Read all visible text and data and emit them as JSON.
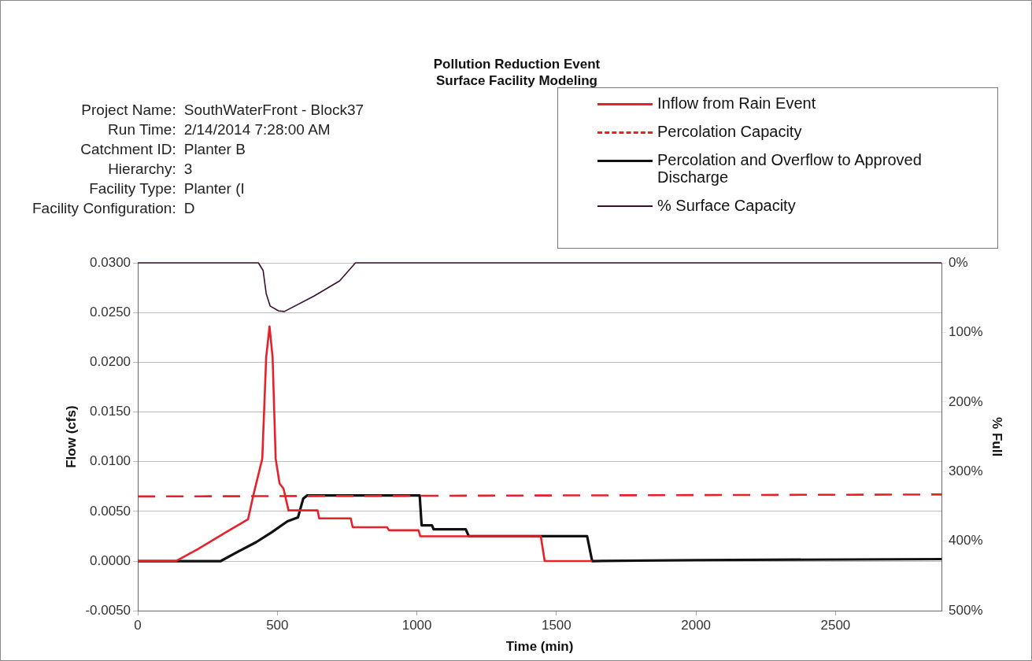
{
  "chart_data": {
    "type": "line",
    "title": "Pollution Reduction Event",
    "subtitle": "Surface Facility Modeling",
    "xlabel": "Time (min)",
    "ylabel": "Flow (cfs)",
    "y2label": "% Full",
    "annotations": [
      "Project Name:",
      "SouthWaterFront - Block37",
      "Run Time:",
      "2/14/2014 7:28:00 AM",
      "Catchment ID:",
      "Planter B",
      "Hierarchy:",
      "3",
      "Facility Type:",
      "Planter (I",
      "Facility Configuration:",
      "D"
    ],
    "xlim": [
      0,
      2880
    ],
    "xticks": [
      0,
      500,
      1000,
      1500,
      2000,
      2500
    ],
    "ylim": [
      -0.005,
      0.03
    ],
    "yticks": [
      {
        "value": -0.005,
        "label": "-0.0050"
      },
      {
        "value": 0,
        "label": "0.0000"
      },
      {
        "value": 0.005,
        "label": "0.0050"
      },
      {
        "value": 0.01,
        "label": "0.0100"
      },
      {
        "value": 0.015,
        "label": "0.0150"
      },
      {
        "value": 0.02,
        "label": "0.0200"
      },
      {
        "value": 0.025,
        "label": "0.0250"
      },
      {
        "value": 0.03,
        "label": "0.0300"
      }
    ],
    "y2lim": [
      500,
      0
    ],
    "y2ticks": [
      {
        "value": 0,
        "label": "0%"
      },
      {
        "value": 100,
        "label": "100%"
      },
      {
        "value": 200,
        "label": "200%"
      },
      {
        "value": 300,
        "label": "300%"
      },
      {
        "value": 400,
        "label": "400%"
      },
      {
        "value": 500,
        "label": "500%"
      }
    ],
    "grid": "y",
    "legend": "top right",
    "marker": "none",
    "series": [
      {
        "name": "Inflow from Rain Event",
        "color": "#e8202a",
        "line_style": "solid",
        "x": [
          0,
          136,
          215,
          310,
          395,
          413,
          446,
          460,
          472,
          483,
          494,
          508,
          522,
          540,
          644,
          650,
          763,
          770,
          893,
          900,
          1006,
          1012,
          1186,
          1444,
          1458,
          1628
        ],
        "values": [
          0,
          0,
          0.0012,
          0.0028,
          0.0042,
          0.0065,
          0.0103,
          0.0205,
          0.0236,
          0.0205,
          0.0103,
          0.0078,
          0.0073,
          0.0051,
          0.0051,
          0.0043,
          0.0043,
          0.0034,
          0.0034,
          0.0031,
          0.0031,
          0.0025,
          0.0025,
          0.0025,
          0,
          0
        ]
      },
      {
        "name": "Percolation Capacity",
        "color": "#e8202a",
        "line_style": "dashed",
        "x": [
          0,
          2880
        ],
        "values": [
          0.0065,
          0.0067
        ]
      },
      {
        "name": "Percolation and Overflow to Approved Discharge",
        "color": "#111111",
        "line_style": "solid",
        "x": [
          0,
          297,
          356,
          424,
          480,
          536,
          574,
          593,
          607,
          1010,
          1017,
          1054,
          1060,
          1175,
          1186,
          1610,
          1628,
          2000,
          2880
        ],
        "values": [
          0,
          0,
          0.0009,
          0.0019,
          0.0029,
          0.004,
          0.0044,
          0.0063,
          0.0066,
          0.0066,
          0.0036,
          0.0036,
          0.0032,
          0.0032,
          0.0025,
          0.0025,
          0,
          0.0001,
          0.0002
        ]
      },
      {
        "name": "% Surface Capacity",
        "color": "#3a1030",
        "line_style": "solid",
        "axis": "y2",
        "x": [
          0,
          432,
          449,
          460,
          474,
          504,
          525,
          630,
          723,
          780,
          2880
        ],
        "values": [
          0,
          0,
          11,
          44,
          62,
          69,
          70,
          48,
          26,
          0,
          0
        ]
      }
    ]
  }
}
